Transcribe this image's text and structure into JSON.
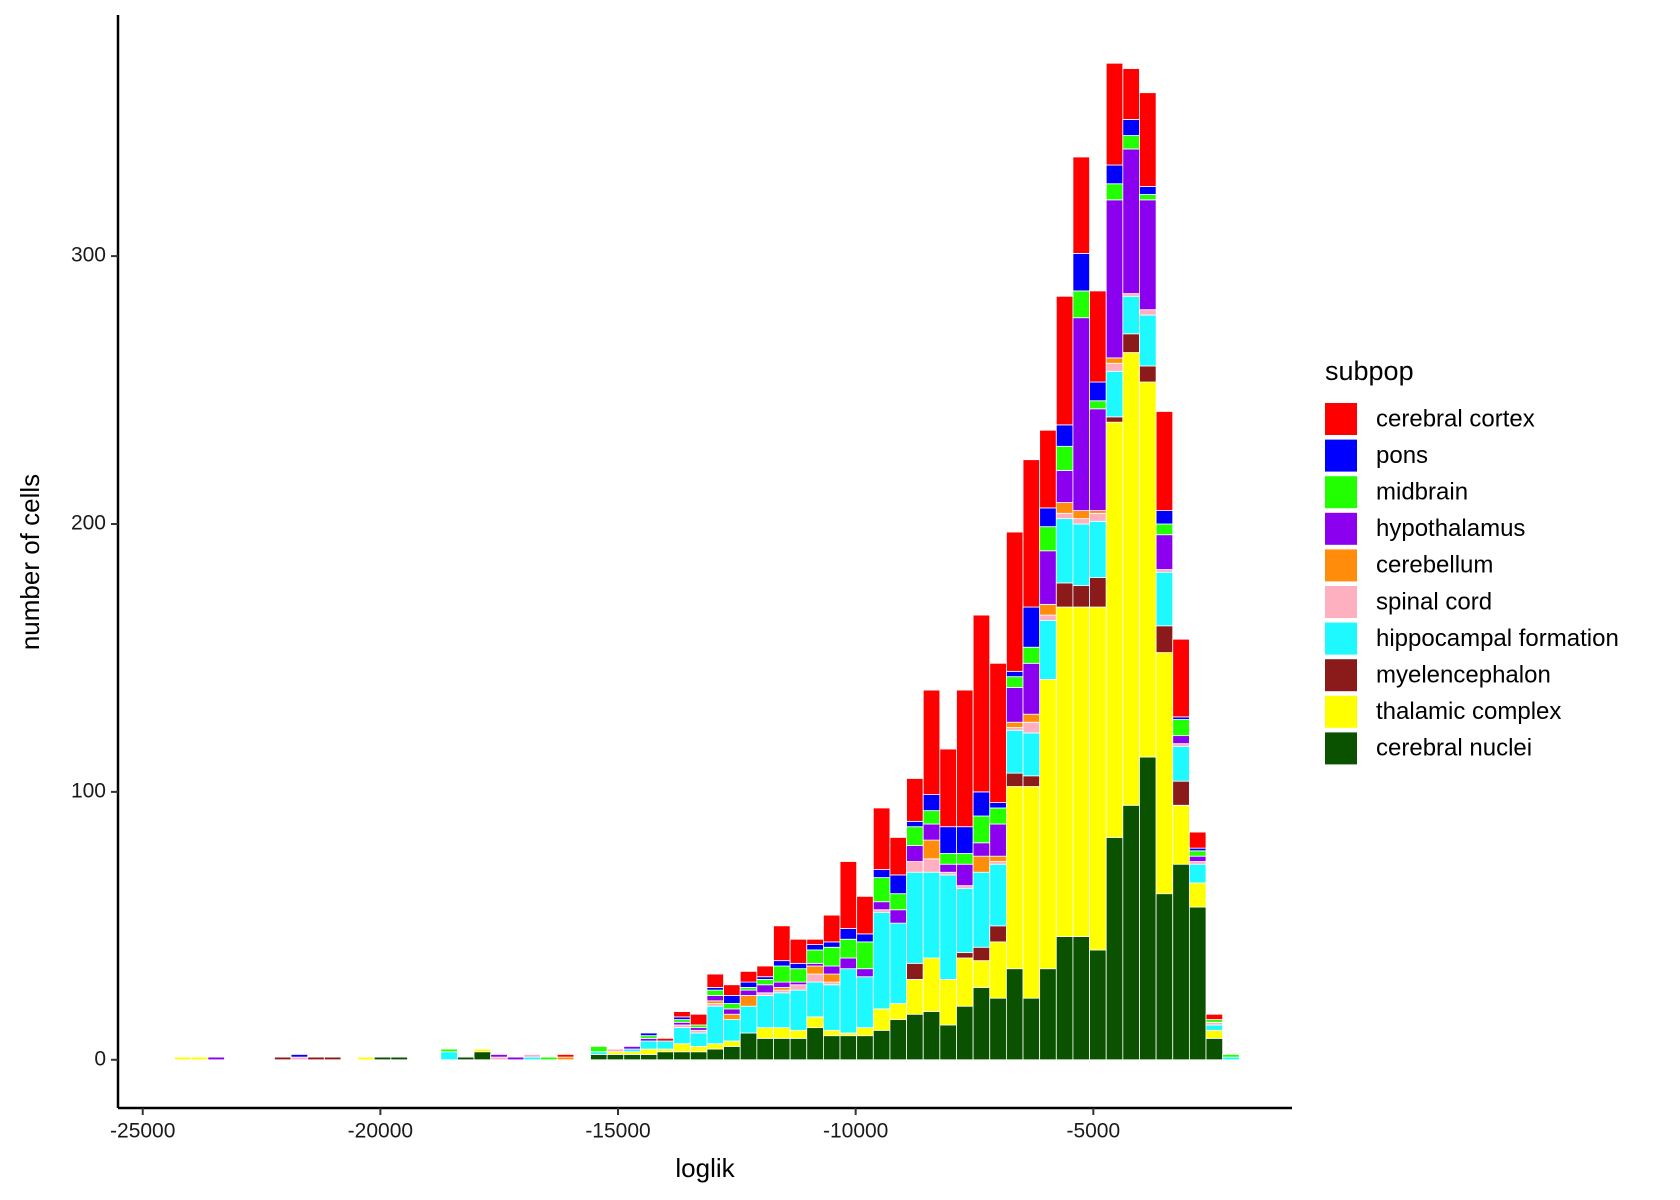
{
  "chart_data": {
    "type": "stacked_histogram",
    "x_label": "loglik",
    "y_label": "number of cells",
    "legend_title": "subpop",
    "legend_position": "right",
    "xlim": [
      -25520,
      -820
    ],
    "ylim": [
      -18,
      390
    ],
    "xticks": [
      -25000,
      -20000,
      -15000,
      -10000,
      -5000
    ],
    "yticks": [
      0,
      100,
      200,
      300
    ],
    "bins": [
      -24329,
      -23979,
      -23629,
      -23279,
      -22929,
      -22579,
      -22229,
      -21879,
      -21529,
      -21179,
      -20829,
      -20479,
      -20129,
      -19779,
      -19429,
      -19079,
      -18729,
      -18379,
      -18029,
      -17679,
      -17329,
      -16979,
      -16629,
      -16279,
      -15929,
      -15579,
      -15229,
      -14879,
      -14529,
      -14179,
      -13829,
      -13479,
      -13129,
      -12779,
      -12429,
      -12079,
      -11729,
      -11379,
      -11029,
      -10679,
      -10329,
      -9979,
      -9629,
      -9279,
      -8929,
      -8579,
      -8229,
      -7879,
      -7529,
      -7179,
      -6829,
      -6479,
      -6129,
      -5779,
      -5429,
      -5079,
      -4729,
      -4379,
      -4029,
      -3679,
      -3329,
      -2979,
      -2629,
      -2279,
      -1929
    ],
    "series": [
      {
        "name": "cerebral cortex",
        "color": "#ff0000",
        "values": [
          0,
          0,
          0,
          0,
          0,
          0,
          0,
          0,
          0,
          0,
          0,
          0,
          0,
          0,
          0,
          0,
          0,
          0,
          0,
          0,
          0,
          0,
          0,
          1,
          0,
          0,
          0,
          0,
          0,
          1,
          2,
          4,
          5,
          4,
          4,
          4,
          13,
          9,
          2,
          10,
          25,
          14,
          23,
          14,
          16,
          39,
          29,
          51,
          66,
          52,
          52,
          55,
          29,
          48,
          36,
          34,
          38,
          19,
          35,
          37,
          29,
          6,
          2,
          0
        ]
      },
      {
        "name": "pons",
        "color": "#0000ff",
        "values": [
          0,
          0,
          0,
          0,
          0,
          0,
          0,
          1,
          0,
          0,
          0,
          0,
          0,
          0,
          0,
          0,
          0,
          0,
          0,
          0,
          0,
          0,
          0,
          0,
          0,
          0,
          0,
          0,
          1,
          0,
          1,
          0,
          1,
          3,
          2,
          1,
          2,
          2,
          2,
          2,
          4,
          3,
          3,
          7,
          2,
          6,
          10,
          10,
          9,
          2,
          2,
          15,
          7,
          8,
          14,
          7,
          7,
          6,
          3,
          5,
          1,
          1,
          0,
          0
        ]
      },
      {
        "name": "midbrain",
        "color": "#22ff00",
        "values": [
          0,
          0,
          0,
          0,
          0,
          0,
          0,
          0,
          0,
          0,
          0,
          0,
          0,
          0,
          0,
          0,
          1,
          0,
          0,
          0,
          0,
          0,
          1,
          0,
          0,
          2,
          0,
          0,
          1,
          0,
          1,
          1,
          2,
          2,
          1,
          2,
          6,
          5,
          5,
          7,
          7,
          10,
          9,
          6,
          7,
          5,
          4,
          4,
          10,
          6,
          4,
          6,
          9,
          9,
          10,
          3,
          6,
          5,
          2,
          4,
          6,
          2,
          1,
          1
        ]
      },
      {
        "name": "hypothalamus",
        "color": "#8b00ee",
        "values": [
          0,
          0,
          1,
          0,
          0,
          0,
          0,
          0,
          0,
          0,
          0,
          0,
          0,
          0,
          0,
          0,
          0,
          0,
          0,
          1,
          1,
          0,
          0,
          0,
          0,
          0,
          0,
          1,
          1,
          0,
          1,
          1,
          2,
          2,
          2,
          3,
          2,
          1,
          1,
          3,
          4,
          3,
          3,
          5,
          6,
          6,
          3,
          8,
          5,
          12,
          13,
          19,
          20,
          12,
          72,
          38,
          59,
          54,
          41,
          13,
          3,
          2,
          0,
          0
        ]
      },
      {
        "name": "cerebellum",
        "color": "#ff8c0a",
        "values": [
          0,
          0,
          0,
          0,
          0,
          0,
          0,
          0,
          0,
          0,
          0,
          0,
          0,
          0,
          0,
          0,
          0,
          0,
          0,
          0,
          0,
          0,
          0,
          1,
          0,
          0,
          0,
          0,
          0,
          0,
          0,
          0,
          1,
          2,
          4,
          0,
          1,
          0,
          3,
          3,
          0,
          0,
          0,
          0,
          0,
          7,
          0,
          0,
          6,
          2,
          2,
          3,
          4,
          4,
          3,
          1,
          2,
          0,
          0,
          0,
          0,
          0,
          0,
          0
        ]
      },
      {
        "name": "spinal cord",
        "color": "#ffb0c0",
        "values": [
          0,
          0,
          0,
          0,
          0,
          0,
          0,
          1,
          0,
          0,
          0,
          0,
          0,
          0,
          0,
          0,
          0,
          0,
          0,
          1,
          0,
          1,
          0,
          0,
          0,
          0,
          1,
          0,
          0,
          0,
          1,
          1,
          1,
          0,
          0,
          1,
          1,
          2,
          3,
          1,
          0,
          0,
          1,
          0,
          4,
          5,
          1,
          1,
          0,
          1,
          1,
          4,
          2,
          2,
          2,
          3,
          3,
          1,
          2,
          1,
          1,
          1,
          1,
          0
        ]
      },
      {
        "name": "hippocampal formation",
        "color": "#1ef8ff",
        "values": [
          0,
          0,
          0,
          0,
          0,
          0,
          0,
          0,
          0,
          0,
          0,
          0,
          0,
          0,
          0,
          0,
          3,
          0,
          0,
          0,
          0,
          1,
          0,
          0,
          0,
          1,
          0,
          1,
          3,
          3,
          6,
          5,
          14,
          8,
          10,
          12,
          13,
          15,
          13,
          17,
          24,
          19,
          36,
          30,
          34,
          32,
          39,
          24,
          28,
          23,
          16,
          16,
          22,
          24,
          23,
          21,
          17,
          14,
          19,
          20,
          13,
          7,
          2,
          1
        ]
      },
      {
        "name": "myelencephalon",
        "color": "#8b1a1a",
        "values": [
          0,
          0,
          0,
          0,
          0,
          0,
          1,
          0,
          1,
          1,
          0,
          0,
          0,
          0,
          0,
          0,
          0,
          0,
          0,
          0,
          0,
          0,
          0,
          0,
          0,
          0,
          0,
          0,
          0,
          0,
          0,
          0,
          0,
          0,
          0,
          0,
          0,
          0,
          0,
          0,
          0,
          0,
          0,
          0,
          6,
          0,
          0,
          2,
          5,
          6,
          5,
          4,
          0,
          9,
          8,
          11,
          2,
          7,
          6,
          10,
          9,
          0,
          0,
          0
        ]
      },
      {
        "name": "thalamic complex",
        "color": "#ffff00",
        "values": [
          1,
          1,
          0,
          0,
          0,
          0,
          0,
          0,
          0,
          0,
          0,
          1,
          0,
          0,
          0,
          0,
          0,
          0,
          1,
          0,
          0,
          0,
          0,
          0,
          0,
          0,
          1,
          1,
          2,
          1,
          3,
          2,
          2,
          2,
          0,
          4,
          4,
          3,
          4,
          2,
          1,
          3,
          8,
          6,
          13,
          20,
          17,
          18,
          10,
          21,
          68,
          79,
          108,
          123,
          123,
          128,
          155,
          169,
          140,
          90,
          22,
          9,
          3,
          0
        ]
      },
      {
        "name": "cerebral nuclei",
        "color": "#0a5200",
        "values": [
          0,
          0,
          0,
          0,
          0,
          0,
          0,
          0,
          0,
          0,
          0,
          0,
          1,
          1,
          0,
          0,
          0,
          1,
          3,
          0,
          0,
          0,
          0,
          0,
          0,
          2,
          2,
          2,
          2,
          3,
          3,
          3,
          4,
          5,
          10,
          8,
          8,
          8,
          12,
          9,
          9,
          9,
          11,
          15,
          17,
          18,
          13,
          20,
          27,
          23,
          34,
          23,
          34,
          46,
          46,
          41,
          83,
          95,
          113,
          62,
          73,
          57,
          8,
          0
        ]
      }
    ]
  }
}
